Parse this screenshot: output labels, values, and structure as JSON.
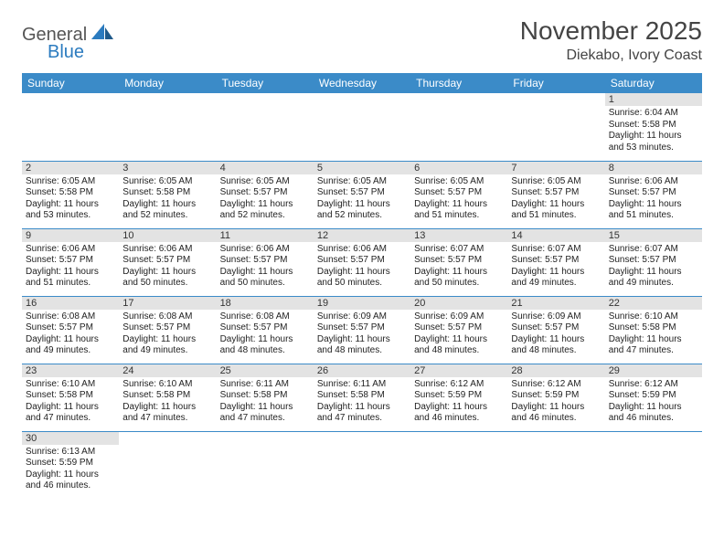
{
  "logo": {
    "general": "General",
    "blue": "Blue"
  },
  "header": {
    "title": "November 2025",
    "location": "Diekabo, Ivory Coast"
  },
  "colors": {
    "header_bg": "#3b8bc8",
    "header_text": "#ffffff",
    "daynum_bg": "#e3e3e3",
    "border": "#3b8bc8",
    "logo_blue": "#2b7bbf"
  },
  "weekdays": [
    "Sunday",
    "Monday",
    "Tuesday",
    "Wednesday",
    "Thursday",
    "Friday",
    "Saturday"
  ],
  "weeks": [
    [
      {
        "day": "",
        "sunrise": "",
        "sunset": "",
        "daylight1": "",
        "daylight2": ""
      },
      {
        "day": "",
        "sunrise": "",
        "sunset": "",
        "daylight1": "",
        "daylight2": ""
      },
      {
        "day": "",
        "sunrise": "",
        "sunset": "",
        "daylight1": "",
        "daylight2": ""
      },
      {
        "day": "",
        "sunrise": "",
        "sunset": "",
        "daylight1": "",
        "daylight2": ""
      },
      {
        "day": "",
        "sunrise": "",
        "sunset": "",
        "daylight1": "",
        "daylight2": ""
      },
      {
        "day": "",
        "sunrise": "",
        "sunset": "",
        "daylight1": "",
        "daylight2": ""
      },
      {
        "day": "1",
        "sunrise": "Sunrise: 6:04 AM",
        "sunset": "Sunset: 5:58 PM",
        "daylight1": "Daylight: 11 hours",
        "daylight2": "and 53 minutes."
      }
    ],
    [
      {
        "day": "2",
        "sunrise": "Sunrise: 6:05 AM",
        "sunset": "Sunset: 5:58 PM",
        "daylight1": "Daylight: 11 hours",
        "daylight2": "and 53 minutes."
      },
      {
        "day": "3",
        "sunrise": "Sunrise: 6:05 AM",
        "sunset": "Sunset: 5:58 PM",
        "daylight1": "Daylight: 11 hours",
        "daylight2": "and 52 minutes."
      },
      {
        "day": "4",
        "sunrise": "Sunrise: 6:05 AM",
        "sunset": "Sunset: 5:57 PM",
        "daylight1": "Daylight: 11 hours",
        "daylight2": "and 52 minutes."
      },
      {
        "day": "5",
        "sunrise": "Sunrise: 6:05 AM",
        "sunset": "Sunset: 5:57 PM",
        "daylight1": "Daylight: 11 hours",
        "daylight2": "and 52 minutes."
      },
      {
        "day": "6",
        "sunrise": "Sunrise: 6:05 AM",
        "sunset": "Sunset: 5:57 PM",
        "daylight1": "Daylight: 11 hours",
        "daylight2": "and 51 minutes."
      },
      {
        "day": "7",
        "sunrise": "Sunrise: 6:05 AM",
        "sunset": "Sunset: 5:57 PM",
        "daylight1": "Daylight: 11 hours",
        "daylight2": "and 51 minutes."
      },
      {
        "day": "8",
        "sunrise": "Sunrise: 6:06 AM",
        "sunset": "Sunset: 5:57 PM",
        "daylight1": "Daylight: 11 hours",
        "daylight2": "and 51 minutes."
      }
    ],
    [
      {
        "day": "9",
        "sunrise": "Sunrise: 6:06 AM",
        "sunset": "Sunset: 5:57 PM",
        "daylight1": "Daylight: 11 hours",
        "daylight2": "and 51 minutes."
      },
      {
        "day": "10",
        "sunrise": "Sunrise: 6:06 AM",
        "sunset": "Sunset: 5:57 PM",
        "daylight1": "Daylight: 11 hours",
        "daylight2": "and 50 minutes."
      },
      {
        "day": "11",
        "sunrise": "Sunrise: 6:06 AM",
        "sunset": "Sunset: 5:57 PM",
        "daylight1": "Daylight: 11 hours",
        "daylight2": "and 50 minutes."
      },
      {
        "day": "12",
        "sunrise": "Sunrise: 6:06 AM",
        "sunset": "Sunset: 5:57 PM",
        "daylight1": "Daylight: 11 hours",
        "daylight2": "and 50 minutes."
      },
      {
        "day": "13",
        "sunrise": "Sunrise: 6:07 AM",
        "sunset": "Sunset: 5:57 PM",
        "daylight1": "Daylight: 11 hours",
        "daylight2": "and 50 minutes."
      },
      {
        "day": "14",
        "sunrise": "Sunrise: 6:07 AM",
        "sunset": "Sunset: 5:57 PM",
        "daylight1": "Daylight: 11 hours",
        "daylight2": "and 49 minutes."
      },
      {
        "day": "15",
        "sunrise": "Sunrise: 6:07 AM",
        "sunset": "Sunset: 5:57 PM",
        "daylight1": "Daylight: 11 hours",
        "daylight2": "and 49 minutes."
      }
    ],
    [
      {
        "day": "16",
        "sunrise": "Sunrise: 6:08 AM",
        "sunset": "Sunset: 5:57 PM",
        "daylight1": "Daylight: 11 hours",
        "daylight2": "and 49 minutes."
      },
      {
        "day": "17",
        "sunrise": "Sunrise: 6:08 AM",
        "sunset": "Sunset: 5:57 PM",
        "daylight1": "Daylight: 11 hours",
        "daylight2": "and 49 minutes."
      },
      {
        "day": "18",
        "sunrise": "Sunrise: 6:08 AM",
        "sunset": "Sunset: 5:57 PM",
        "daylight1": "Daylight: 11 hours",
        "daylight2": "and 48 minutes."
      },
      {
        "day": "19",
        "sunrise": "Sunrise: 6:09 AM",
        "sunset": "Sunset: 5:57 PM",
        "daylight1": "Daylight: 11 hours",
        "daylight2": "and 48 minutes."
      },
      {
        "day": "20",
        "sunrise": "Sunrise: 6:09 AM",
        "sunset": "Sunset: 5:57 PM",
        "daylight1": "Daylight: 11 hours",
        "daylight2": "and 48 minutes."
      },
      {
        "day": "21",
        "sunrise": "Sunrise: 6:09 AM",
        "sunset": "Sunset: 5:57 PM",
        "daylight1": "Daylight: 11 hours",
        "daylight2": "and 48 minutes."
      },
      {
        "day": "22",
        "sunrise": "Sunrise: 6:10 AM",
        "sunset": "Sunset: 5:58 PM",
        "daylight1": "Daylight: 11 hours",
        "daylight2": "and 47 minutes."
      }
    ],
    [
      {
        "day": "23",
        "sunrise": "Sunrise: 6:10 AM",
        "sunset": "Sunset: 5:58 PM",
        "daylight1": "Daylight: 11 hours",
        "daylight2": "and 47 minutes."
      },
      {
        "day": "24",
        "sunrise": "Sunrise: 6:10 AM",
        "sunset": "Sunset: 5:58 PM",
        "daylight1": "Daylight: 11 hours",
        "daylight2": "and 47 minutes."
      },
      {
        "day": "25",
        "sunrise": "Sunrise: 6:11 AM",
        "sunset": "Sunset: 5:58 PM",
        "daylight1": "Daylight: 11 hours",
        "daylight2": "and 47 minutes."
      },
      {
        "day": "26",
        "sunrise": "Sunrise: 6:11 AM",
        "sunset": "Sunset: 5:58 PM",
        "daylight1": "Daylight: 11 hours",
        "daylight2": "and 47 minutes."
      },
      {
        "day": "27",
        "sunrise": "Sunrise: 6:12 AM",
        "sunset": "Sunset: 5:59 PM",
        "daylight1": "Daylight: 11 hours",
        "daylight2": "and 46 minutes."
      },
      {
        "day": "28",
        "sunrise": "Sunrise: 6:12 AM",
        "sunset": "Sunset: 5:59 PM",
        "daylight1": "Daylight: 11 hours",
        "daylight2": "and 46 minutes."
      },
      {
        "day": "29",
        "sunrise": "Sunrise: 6:12 AM",
        "sunset": "Sunset: 5:59 PM",
        "daylight1": "Daylight: 11 hours",
        "daylight2": "and 46 minutes."
      }
    ],
    [
      {
        "day": "30",
        "sunrise": "Sunrise: 6:13 AM",
        "sunset": "Sunset: 5:59 PM",
        "daylight1": "Daylight: 11 hours",
        "daylight2": "and 46 minutes."
      },
      {
        "day": "",
        "sunrise": "",
        "sunset": "",
        "daylight1": "",
        "daylight2": ""
      },
      {
        "day": "",
        "sunrise": "",
        "sunset": "",
        "daylight1": "",
        "daylight2": ""
      },
      {
        "day": "",
        "sunrise": "",
        "sunset": "",
        "daylight1": "",
        "daylight2": ""
      },
      {
        "day": "",
        "sunrise": "",
        "sunset": "",
        "daylight1": "",
        "daylight2": ""
      },
      {
        "day": "",
        "sunrise": "",
        "sunset": "",
        "daylight1": "",
        "daylight2": ""
      },
      {
        "day": "",
        "sunrise": "",
        "sunset": "",
        "daylight1": "",
        "daylight2": ""
      }
    ]
  ]
}
